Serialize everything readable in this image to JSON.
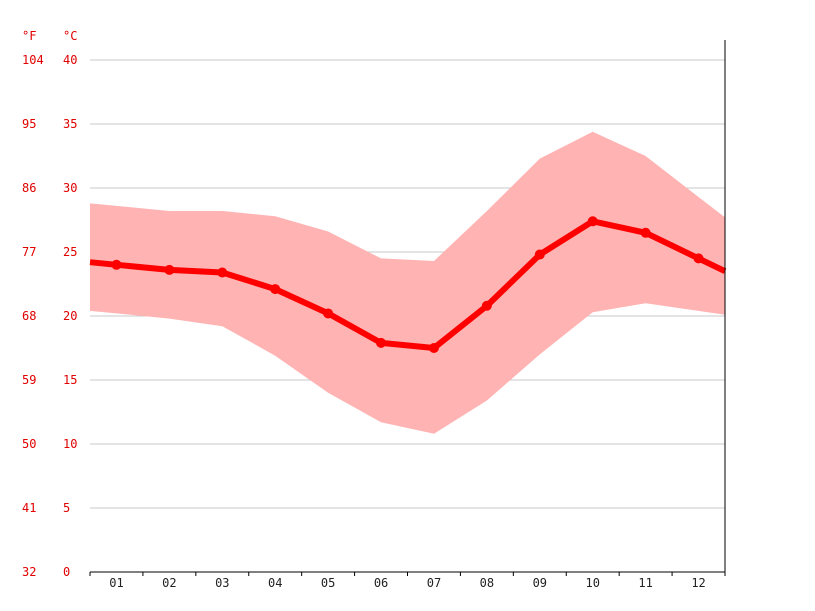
{
  "chart_data": {
    "type": "line",
    "title": "",
    "xlabel": "",
    "ylabel": "",
    "units": {
      "fahrenheit": "°F",
      "celsius": "°C"
    },
    "categories": [
      "01",
      "02",
      "03",
      "04",
      "05",
      "06",
      "07",
      "08",
      "09",
      "10",
      "11",
      "12"
    ],
    "ylim": [
      0,
      40
    ],
    "celsius_ticks": [
      0,
      5,
      10,
      15,
      20,
      25,
      30,
      35,
      40
    ],
    "fahrenheit_ticks": [
      32,
      41,
      50,
      59,
      68,
      77,
      86,
      95,
      104
    ],
    "grid": true,
    "series": [
      {
        "values": [
          24.0,
          23.6,
          23.4,
          22.1,
          20.2,
          17.9,
          17.5,
          20.8,
          24.8,
          27.4,
          26.5,
          24.5
        ]
      }
    ],
    "range_band": {
      "upper": [
        28.6,
        28.2,
        28.2,
        27.8,
        26.6,
        24.5,
        24.3,
        28.2,
        32.3,
        34.4,
        32.5,
        29.3
      ],
      "lower": [
        20.2,
        19.8,
        19.2,
        16.9,
        14.0,
        11.7,
        10.8,
        13.4,
        17.0,
        20.3,
        21.0,
        20.4
      ]
    },
    "colors": {
      "line": "#ff0000",
      "band": "#ffb3b3",
      "axis_text": "#e00000"
    }
  }
}
